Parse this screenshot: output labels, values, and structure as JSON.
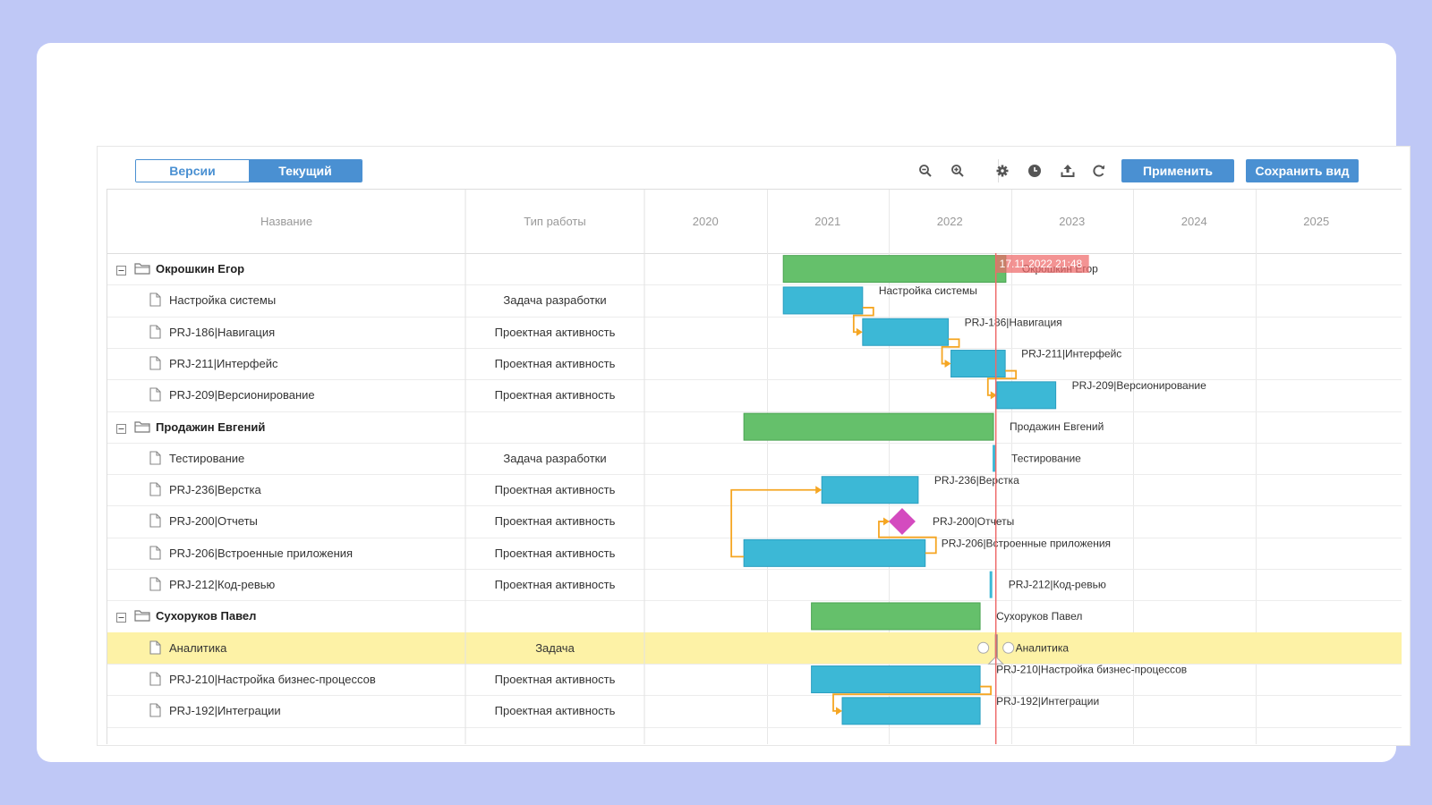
{
  "toolbar": {
    "versions_label": "Версии",
    "current_label": "Текущий",
    "apply_label": "Применить",
    "save_view_label": "Сохранить вид",
    "icons": [
      "zoom-out-icon",
      "zoom-in-icon",
      "gear-icon",
      "clock-icon",
      "upload-icon",
      "refresh-icon"
    ]
  },
  "columns": {
    "name": "Название",
    "type": "Тип работы"
  },
  "years": [
    "2020",
    "2021",
    "2022",
    "2023",
    "2024",
    "2025"
  ],
  "today_label": "17.11.2022 21:48",
  "colors": {
    "group": "#65c06b",
    "task": "#3cb8d6",
    "milestone": "#d44bbf",
    "link": "#f5a623",
    "today": "#ee6a6a",
    "highlight": "#fdf2a6"
  },
  "rows": [
    {
      "name": "Окрошкин Егор",
      "type": "",
      "group": true
    },
    {
      "name": "Настройка системы",
      "type": "Задача разработки"
    },
    {
      "name": "PRJ-186|Навигация",
      "type": "Проектная активность"
    },
    {
      "name": "PRJ-211|Интерфейс",
      "type": "Проектная активность"
    },
    {
      "name": "PRJ-209|Версионирование",
      "type": "Проектная активность"
    },
    {
      "name": "Продажин Евгений",
      "type": "",
      "group": true
    },
    {
      "name": "Тестирование",
      "type": "Задача разработки"
    },
    {
      "name": "PRJ-236|Верстка",
      "type": "Проектная активность"
    },
    {
      "name": "PRJ-200|Отчеты",
      "type": "Проектная активность"
    },
    {
      "name": "PRJ-206|Встроенные приложения",
      "type": "Проектная активность"
    },
    {
      "name": "PRJ-212|Код-ревью",
      "type": "Проектная активность"
    },
    {
      "name": "Сухоруков Павел",
      "type": "",
      "group": true
    },
    {
      "name": "Аналитика",
      "type": "Задача",
      "highlight": true
    },
    {
      "name": "PRJ-210|Настройка бизнес-процессов",
      "type": "Проектная активность"
    },
    {
      "name": "PRJ-192|Интеграции",
      "type": "Проектная активность"
    }
  ],
  "bars": [
    {
      "row": 0,
      "kind": "group",
      "start": "2021-02-20",
      "end": "2022-12-17",
      "label": "Окрошкин Егор"
    },
    {
      "row": 1,
      "kind": "task",
      "start": "2021-02-20",
      "end": "2021-10-15",
      "label": "Настройка системы"
    },
    {
      "row": 2,
      "kind": "task",
      "start": "2021-10-15",
      "end": "2022-06-28",
      "label": "PRJ-186|Навигация"
    },
    {
      "row": 3,
      "kind": "task",
      "start": "2022-07-06",
      "end": "2022-12-15",
      "label": "PRJ-211|Интерфейс"
    },
    {
      "row": 4,
      "kind": "task",
      "start": "2022-11-20",
      "end": "2023-05-15",
      "label": "PRJ-209|Версионирование"
    },
    {
      "row": 5,
      "kind": "group",
      "start": "2020-10-25",
      "end": "2022-11-10",
      "label": "Продажин Евгений"
    },
    {
      "row": 6,
      "kind": "tick",
      "start": "2022-11-10",
      "end": "2022-11-10",
      "label": "Тестирование"
    },
    {
      "row": 7,
      "kind": "task",
      "start": "2021-06-15",
      "end": "2022-03-30",
      "label": "PRJ-236|Верстка"
    },
    {
      "row": 8,
      "kind": "milestone",
      "start": "2022-02-10",
      "end": "2022-02-10",
      "label": "PRJ-200|Отчеты"
    },
    {
      "row": 9,
      "kind": "task",
      "start": "2020-10-25",
      "end": "2022-04-20",
      "label": "PRJ-206|Встроенные приложения"
    },
    {
      "row": 10,
      "kind": "tick",
      "start": "2022-11-01",
      "end": "2022-11-01",
      "label": "PRJ-212|Код-ревью"
    },
    {
      "row": 11,
      "kind": "group",
      "start": "2021-05-15",
      "end": "2022-10-01",
      "label": "Сухоруков Павел"
    },
    {
      "row": 12,
      "kind": "point",
      "start": "2022-11-17",
      "end": "2022-11-17",
      "label": "Аналитика"
    },
    {
      "row": 13,
      "kind": "task",
      "start": "2021-05-15",
      "end": "2022-10-01",
      "label": "PRJ-210|Настройка бизнес-процессов"
    },
    {
      "row": 14,
      "kind": "task",
      "start": "2021-08-15",
      "end": "2022-10-01",
      "label": "PRJ-192|Интеграции"
    }
  ],
  "links": [
    {
      "from": 1,
      "to": 2
    },
    {
      "from": 2,
      "to": 3
    },
    {
      "from": 3,
      "to": 4
    },
    {
      "from": 9,
      "to": 7
    },
    {
      "from": 9,
      "to": 8
    },
    {
      "from": 13,
      "to": 14
    }
  ]
}
